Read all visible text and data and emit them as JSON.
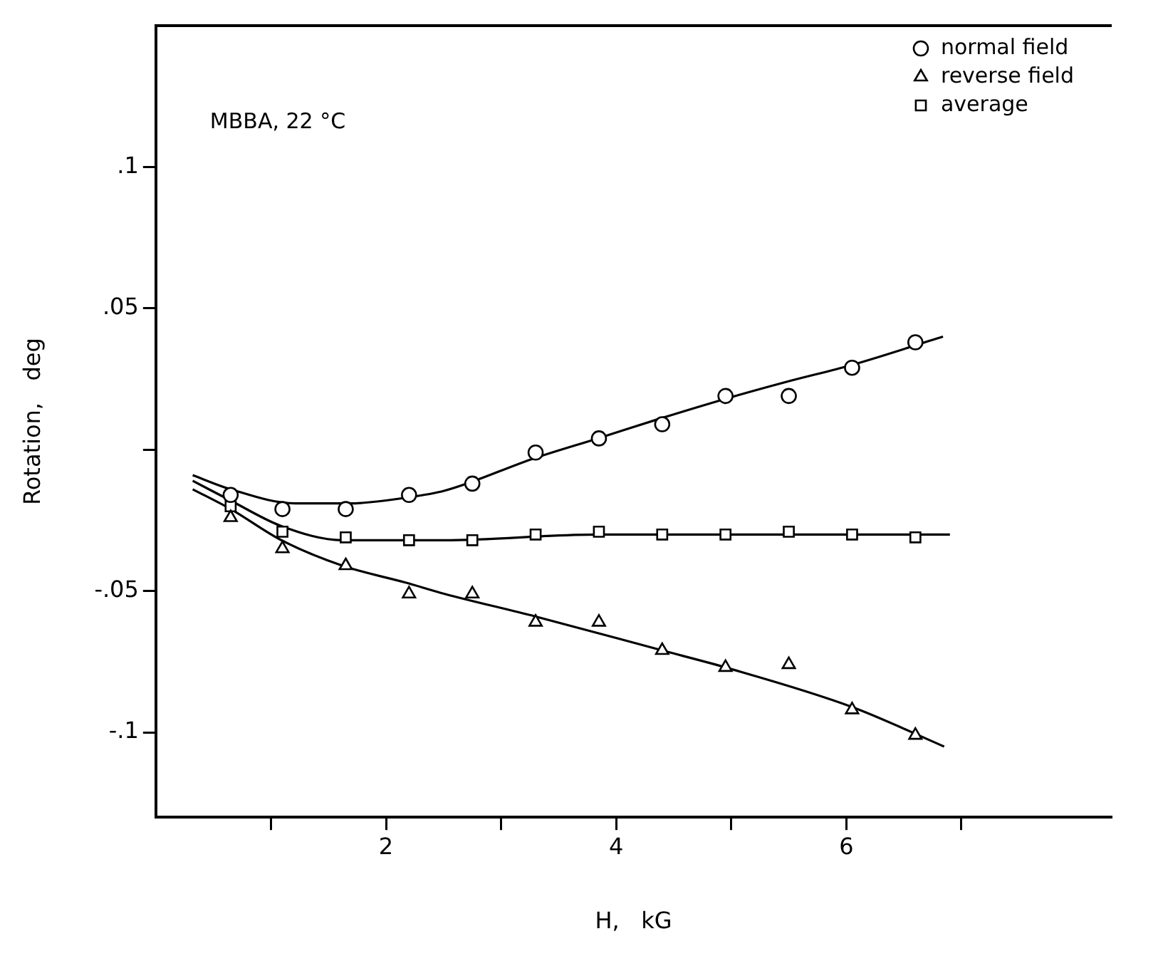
{
  "chart_data": {
    "type": "scatter",
    "xlabel": "H,   kG",
    "ylabel": "Rotation,   deg",
    "annotations": [
      "MBBA, 22 °C"
    ],
    "xlim": [
      0,
      8.3
    ],
    "xticks": [
      {
        "value": 1,
        "label": null
      },
      2,
      {
        "value": 3,
        "label": null
      },
      4,
      {
        "value": 5,
        "label": null
      },
      6,
      {
        "value": 7,
        "label": null
      }
    ],
    "ylim": [
      -0.13,
      0.15
    ],
    "yticks": [
      {
        "value": -0.1,
        "label": "-.1"
      },
      {
        "value": -0.05,
        "label": "-.05"
      },
      {
        "value": 0,
        "label": null
      },
      {
        "value": 0.05,
        "label": ".05"
      },
      {
        "value": 0.1,
        "label": ".1"
      }
    ],
    "grid": false,
    "legend": "top right",
    "series": [
      {
        "name": "normal field",
        "marker": "circle",
        "color": "#000000",
        "x": [
          0.65,
          1.1,
          1.65,
          2.2,
          2.75,
          3.3,
          3.85,
          4.4,
          4.95,
          5.5,
          6.05,
          6.6
        ],
        "values": [
          -0.016,
          -0.021,
          -0.021,
          -0.016,
          -0.012,
          -0.001,
          0.004,
          0.009,
          0.019,
          0.019,
          0.029,
          0.038
        ]
      },
      {
        "name": "reverse field",
        "marker": "triangle",
        "color": "#000000",
        "x": [
          0.65,
          1.1,
          1.65,
          2.2,
          2.75,
          3.3,
          3.85,
          4.4,
          4.95,
          5.5,
          6.05,
          6.6
        ],
        "values": [
          -0.024,
          -0.035,
          -0.041,
          -0.051,
          -0.051,
          -0.061,
          -0.061,
          -0.071,
          -0.077,
          -0.076,
          -0.092,
          -0.101
        ]
      },
      {
        "name": "average",
        "marker": "square",
        "color": "#000000",
        "x": [
          0.65,
          1.1,
          1.65,
          2.2,
          2.75,
          3.3,
          3.85,
          4.4,
          4.95,
          5.5,
          6.05,
          6.6
        ],
        "values": [
          -0.02,
          -0.029,
          -0.031,
          -0.032,
          -0.032,
          -0.03,
          -0.029,
          -0.03,
          -0.03,
          -0.029,
          -0.03,
          -0.031
        ]
      },
      {
        "type": "line",
        "marker": "none",
        "color": "#000000",
        "x": [
          0.32,
          0.65,
          1.21,
          1.68,
          2.17,
          2.51,
          3.29,
          3.84,
          4.38,
          4.95,
          5.48,
          6.05,
          6.84
        ],
        "values": [
          -0.009,
          -0.014,
          -0.019,
          -0.019,
          -0.017,
          -0.0145,
          -0.003,
          0.004,
          0.011,
          0.018,
          0.024,
          0.03,
          0.04
        ]
      },
      {
        "type": "line",
        "marker": "none",
        "color": "#000000",
        "x": [
          0.32,
          0.65,
          1.09,
          1.62,
          2.5,
          3.84,
          6.9
        ],
        "values": [
          -0.011,
          -0.018,
          -0.027,
          -0.032,
          -0.032,
          -0.03,
          -0.03
        ]
      },
      {
        "type": "line",
        "marker": "none",
        "color": "#000000",
        "x": [
          0.32,
          0.65,
          1.09,
          1.62,
          2.17,
          2.51,
          3.3,
          4.4,
          4.95,
          6.05,
          6.85
        ],
        "values": [
          -0.014,
          -0.021,
          -0.032,
          -0.041,
          -0.047,
          -0.051,
          -0.059,
          -0.071,
          -0.077,
          -0.091,
          -0.105
        ]
      }
    ]
  }
}
